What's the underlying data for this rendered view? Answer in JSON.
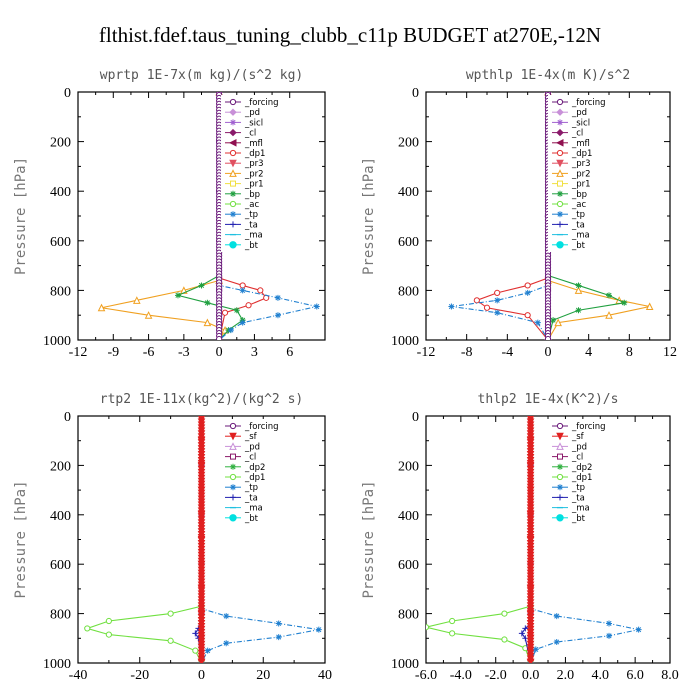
{
  "title": "flthist.fdef.taus_tuning_clubb_c11p  BUDGET at270E,-12N",
  "colors": {
    "forcing": "#6a1a7a",
    "pd": "#c890d8",
    "sicl": "#a060d0",
    "cl": "#8a1a6a",
    "mfl": "#901050",
    "dp1": "#e03030",
    "pr3": "#e05060",
    "pr2": "#f0a020",
    "pr1": "#f0e040",
    "bp": "#20a040",
    "ac": "#70e040",
    "tp": "#2080d0",
    "ta": "#2020b0",
    "ma": "#20c0e0",
    "bt": "#00e0e0",
    "sf": "#e02020",
    "dp2": "#30b040",
    "accent_fill": "#ffffff"
  },
  "chart_data": [
    {
      "type": "line",
      "title": "wprtp  1E-7x(m kg)/(s^2 kg)",
      "ylabel": "Pressure [hPa]",
      "xlim": [
        -12,
        9
      ],
      "ylim": [
        0,
        1000
      ],
      "y_inverted": true,
      "xticks": [
        -12,
        -9,
        -6,
        -3,
        0,
        3,
        6
      ],
      "xtick_labels": [
        "-12",
        "-9",
        "-6",
        "-3",
        "0",
        "3",
        "6"
      ],
      "yticks": [
        0,
        200,
        400,
        600,
        800,
        1000
      ],
      "ytick_labels": [
        "0",
        "200",
        "400",
        "600",
        "800",
        "1000"
      ],
      "legend_position": "top-right",
      "series": [
        {
          "name": "_forcing",
          "color_key": "forcing",
          "marker": "circle",
          "x": [
            0,
            0,
            0,
            0,
            0,
            0,
            0
          ],
          "y": [
            0,
            200,
            400,
            600,
            800,
            900,
            1000
          ]
        },
        {
          "name": "_pd",
          "color_key": "pd",
          "marker": "diamond",
          "x": [],
          "y": []
        },
        {
          "name": "_sicl",
          "color_key": "sicl",
          "marker": "star",
          "x": [],
          "y": []
        },
        {
          "name": "_cl",
          "color_key": "cl",
          "marker": "diamond",
          "x": [],
          "y": []
        },
        {
          "name": "_mfl",
          "color_key": "mfl",
          "marker": "triangle-left",
          "x": [],
          "y": []
        },
        {
          "name": "_dp1",
          "color_key": "dp1",
          "marker": "circle",
          "x": [
            0,
            0,
            2,
            3.5,
            4,
            2.5,
            0.5,
            0
          ],
          "y": [
            0,
            750,
            780,
            800,
            830,
            860,
            890,
            1000
          ]
        },
        {
          "name": "_pr3",
          "color_key": "pr3",
          "marker": "triangle-down",
          "x": [],
          "y": []
        },
        {
          "name": "_pr2",
          "color_key": "pr2",
          "marker": "triangle-up",
          "x": [
            0,
            0,
            -3,
            -7,
            -10,
            -6,
            -1,
            0.5,
            0
          ],
          "y": [
            0,
            760,
            800,
            840,
            870,
            900,
            930,
            960,
            1000
          ]
        },
        {
          "name": "_pr1",
          "color_key": "pr1",
          "marker": "square",
          "x": [],
          "y": []
        },
        {
          "name": "_bp",
          "color_key": "bp",
          "marker": "star",
          "x": [
            0,
            0,
            -1.5,
            -3.5,
            -1,
            1.5,
            2,
            0.8,
            0
          ],
          "y": [
            0,
            740,
            780,
            820,
            850,
            880,
            920,
            960,
            1000
          ]
        },
        {
          "name": "_ac",
          "color_key": "ac",
          "marker": "circle",
          "x": [],
          "y": []
        },
        {
          "name": "_tp",
          "color_key": "tp",
          "marker": "star",
          "x": [
            0,
            0,
            2,
            5,
            8.3,
            5,
            2,
            1,
            0
          ],
          "y": [
            0,
            780,
            800,
            830,
            865,
            900,
            930,
            960,
            1000
          ]
        },
        {
          "name": "_ta",
          "color_key": "ta",
          "marker": "plus",
          "x": [],
          "y": []
        },
        {
          "name": "_ma",
          "color_key": "ma",
          "marker": "dash",
          "x": [],
          "y": []
        },
        {
          "name": "_bt",
          "color_key": "bt",
          "marker": "filled-circle",
          "x": [],
          "y": []
        }
      ]
    },
    {
      "type": "line",
      "title": "wpthlp  1E-4x(m K)/s^2",
      "ylabel": "Pressure [hPa]",
      "xlim": [
        -12,
        12
      ],
      "ylim": [
        0,
        1000
      ],
      "y_inverted": true,
      "xticks": [
        -12,
        -8,
        -4,
        0,
        4,
        8,
        12
      ],
      "xtick_labels": [
        "-12",
        "-8",
        "-4",
        "0",
        "4",
        "8",
        "12"
      ],
      "yticks": [
        0,
        200,
        400,
        600,
        800,
        1000
      ],
      "ytick_labels": [
        "0",
        "200",
        "400",
        "600",
        "800",
        "1000"
      ],
      "legend_position": "top-right",
      "series": [
        {
          "name": "_forcing",
          "color_key": "forcing",
          "marker": "circle",
          "x": [
            0,
            0,
            0,
            0,
            0,
            0
          ],
          "y": [
            0,
            200,
            400,
            600,
            800,
            1000
          ]
        },
        {
          "name": "_pd",
          "color_key": "pd",
          "marker": "diamond",
          "x": [
            0,
            0,
            0
          ],
          "y": [
            0,
            500,
            1000
          ]
        },
        {
          "name": "_sicl",
          "color_key": "sicl",
          "marker": "star",
          "x": [],
          "y": []
        },
        {
          "name": "_cl",
          "color_key": "cl",
          "marker": "diamond",
          "x": [],
          "y": []
        },
        {
          "name": "_mfl",
          "color_key": "mfl",
          "marker": "triangle-left",
          "x": [],
          "y": []
        },
        {
          "name": "_dp1",
          "color_key": "dp1",
          "marker": "circle",
          "x": [
            0,
            0,
            -2,
            -5,
            -7,
            -6,
            -2,
            0
          ],
          "y": [
            0,
            750,
            780,
            810,
            840,
            870,
            900,
            1000
          ]
        },
        {
          "name": "_pr3",
          "color_key": "pr3",
          "marker": "triangle-down",
          "x": [],
          "y": []
        },
        {
          "name": "_pr2",
          "color_key": "pr2",
          "marker": "triangle-up",
          "x": [
            0,
            0,
            3,
            7,
            10,
            6,
            1,
            0
          ],
          "y": [
            0,
            760,
            800,
            840,
            865,
            900,
            930,
            1000
          ]
        },
        {
          "name": "_pr1",
          "color_key": "pr1",
          "marker": "square",
          "x": [],
          "y": []
        },
        {
          "name": "_bp",
          "color_key": "bp",
          "marker": "star",
          "x": [
            0,
            0,
            3,
            6,
            7.5,
            3,
            0.5,
            0
          ],
          "y": [
            0,
            740,
            780,
            820,
            850,
            880,
            920,
            1000
          ]
        },
        {
          "name": "_ac",
          "color_key": "ac",
          "marker": "circle",
          "x": [],
          "y": []
        },
        {
          "name": "_tp",
          "color_key": "tp",
          "marker": "star",
          "x": [
            0,
            0,
            -2,
            -5,
            -9.5,
            -5,
            -1,
            0
          ],
          "y": [
            0,
            780,
            810,
            840,
            865,
            890,
            930,
            1000
          ]
        },
        {
          "name": "_ta",
          "color_key": "ta",
          "marker": "plus",
          "x": [],
          "y": []
        },
        {
          "name": "_ma",
          "color_key": "ma",
          "marker": "dash",
          "x": [],
          "y": []
        },
        {
          "name": "_bt",
          "color_key": "bt",
          "marker": "filled-circle",
          "x": [],
          "y": []
        }
      ]
    },
    {
      "type": "line",
      "title": "rtp2  1E-11x(kg^2)/(kg^2 s)",
      "ylabel": "Pressure [hPa]",
      "xlim": [
        -40,
        40
      ],
      "ylim": [
        0,
        1000
      ],
      "y_inverted": true,
      "xticks": [
        -40,
        -20,
        0,
        20,
        40
      ],
      "xtick_labels": [
        "-40",
        "-20",
        "0",
        "20",
        "40"
      ],
      "yticks": [
        0,
        200,
        400,
        600,
        800,
        1000
      ],
      "ytick_labels": [
        "0",
        "200",
        "400",
        "600",
        "800",
        "1000"
      ],
      "legend_position": "top-right",
      "series": [
        {
          "name": "_forcing",
          "color_key": "forcing",
          "marker": "circle",
          "x": [
            0,
            0,
            0,
            0,
            0,
            0
          ],
          "y": [
            0,
            200,
            400,
            600,
            800,
            1000
          ]
        },
        {
          "name": "_sf",
          "color_key": "sf",
          "marker": "triangle-down",
          "x": [
            0,
            0,
            0,
            0,
            0,
            0,
            0,
            0,
            0,
            0,
            0
          ],
          "y": [
            0,
            100,
            200,
            300,
            400,
            500,
            600,
            700,
            800,
            900,
            1000
          ]
        },
        {
          "name": "_pd",
          "color_key": "pd",
          "marker": "triangle-up",
          "x": [],
          "y": []
        },
        {
          "name": "_cl",
          "color_key": "cl",
          "marker": "square",
          "x": [],
          "y": []
        },
        {
          "name": "_dp2",
          "color_key": "dp2",
          "marker": "star",
          "x": [],
          "y": []
        },
        {
          "name": "_dp1",
          "color_key": "ac",
          "marker": "circle",
          "x": [
            0,
            0,
            -10,
            -30,
            -37,
            -30,
            -10,
            -2,
            0
          ],
          "y": [
            0,
            770,
            800,
            830,
            860,
            885,
            910,
            950,
            1000
          ]
        },
        {
          "name": "_tp",
          "color_key": "tp",
          "marker": "star",
          "x": [
            0,
            0,
            8,
            25,
            38,
            25,
            8,
            2,
            0
          ],
          "y": [
            0,
            780,
            810,
            840,
            865,
            895,
            920,
            950,
            1000
          ]
        },
        {
          "name": "_ta",
          "color_key": "ta",
          "marker": "plus",
          "x": [
            0,
            0,
            -1,
            -2,
            -1,
            0
          ],
          "y": [
            0,
            840,
            860,
            880,
            900,
            1000
          ]
        },
        {
          "name": "_ma",
          "color_key": "ma",
          "marker": "dash",
          "x": [],
          "y": []
        },
        {
          "name": "_bt",
          "color_key": "bt",
          "marker": "filled-circle",
          "x": [],
          "y": []
        }
      ]
    },
    {
      "type": "line",
      "title": "thlp2  1E-4x(K^2)/s",
      "ylabel": "Pressure [hPa]",
      "xlim": [
        -6,
        8
      ],
      "ylim": [
        0,
        1000
      ],
      "y_inverted": true,
      "xticks": [
        -6,
        -4,
        -2,
        0,
        2,
        4,
        6,
        8
      ],
      "xtick_labels": [
        "-6.0",
        "-4.0",
        "-2.0",
        "0.0",
        "2.0",
        "4.0",
        "6.0",
        "8.0"
      ],
      "yticks": [
        0,
        200,
        400,
        600,
        800,
        1000
      ],
      "ytick_labels": [
        "0",
        "200",
        "400",
        "600",
        "800",
        "1000"
      ],
      "legend_position": "top-right",
      "series": [
        {
          "name": "_forcing",
          "color_key": "forcing",
          "marker": "circle",
          "x": [
            0,
            0,
            0,
            0,
            0,
            0
          ],
          "y": [
            0,
            200,
            400,
            600,
            800,
            1000
          ]
        },
        {
          "name": "_sf",
          "color_key": "sf",
          "marker": "triangle-down",
          "x": [
            0,
            0,
            0,
            0,
            0,
            0,
            0,
            0,
            0,
            0,
            0
          ],
          "y": [
            0,
            100,
            200,
            300,
            400,
            500,
            600,
            700,
            800,
            900,
            1000
          ]
        },
        {
          "name": "_pd",
          "color_key": "pd",
          "marker": "triangle-up",
          "x": [],
          "y": []
        },
        {
          "name": "_cl",
          "color_key": "cl",
          "marker": "square",
          "x": [],
          "y": []
        },
        {
          "name": "_dp2",
          "color_key": "dp2",
          "marker": "star",
          "x": [],
          "y": []
        },
        {
          "name": "_dp1",
          "color_key": "ac",
          "marker": "circle",
          "x": [
            0,
            0,
            -1.5,
            -4.5,
            -6,
            -4.5,
            -1.5,
            -0.3,
            0
          ],
          "y": [
            0,
            770,
            800,
            830,
            855,
            880,
            905,
            940,
            1000
          ]
        },
        {
          "name": "_tp",
          "color_key": "tp",
          "marker": "star",
          "x": [
            0,
            0,
            1.5,
            4.5,
            6.2,
            4.5,
            1.5,
            0.3,
            0
          ],
          "y": [
            0,
            780,
            810,
            840,
            865,
            890,
            915,
            945,
            1000
          ]
        },
        {
          "name": "_ta",
          "color_key": "ta",
          "marker": "plus",
          "x": [
            0,
            0,
            -0.3,
            -0.5,
            -0.3,
            0
          ],
          "y": [
            0,
            840,
            860,
            880,
            900,
            1000
          ]
        },
        {
          "name": "_ma",
          "color_key": "ma",
          "marker": "dash",
          "x": [],
          "y": []
        },
        {
          "name": "_bt",
          "color_key": "bt",
          "marker": "filled-circle",
          "x": [],
          "y": []
        }
      ]
    }
  ]
}
